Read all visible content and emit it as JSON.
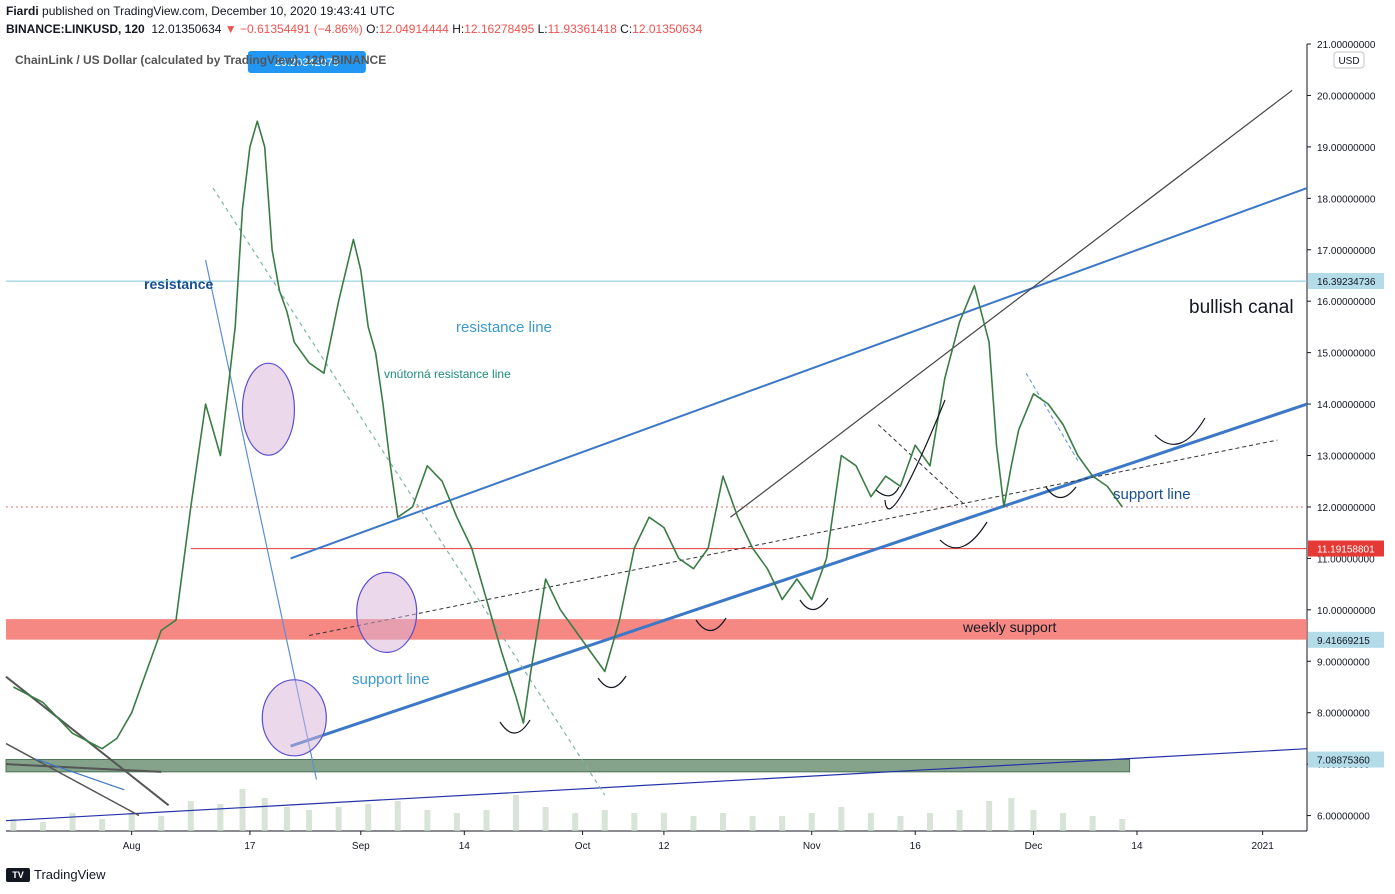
{
  "header": {
    "author": "Fiardi",
    "published": "published on TradingView.com, December 10, 2020 19:43:41 UTC",
    "symbol": "BINANCE:LINKUSD, 120",
    "last": "12.01350634",
    "change": "▼ −0.61354491 (−4.86%)",
    "o_label": "O:",
    "o": "12.04914444",
    "h_label": "H:",
    "h": "12.16278495",
    "l_label": "L:",
    "l": "11.93361418",
    "c_label": "C:",
    "c": "12.01350634"
  },
  "footer": {
    "brand": "TradingView",
    "logo_text": "TV"
  },
  "chart_data": {
    "type": "line",
    "title": "ChainLink / US Dollar (calculated by TradingView), 120, BINANCE",
    "price_tag": "20.20342079",
    "currency": "USD",
    "ylim": [
      5.7,
      21.0
    ],
    "y_ticks": [
      "21.00000000",
      "20.00000000",
      "19.00000000",
      "18.00000000",
      "17.00000000",
      "16.00000000",
      "15.00000000",
      "14.00000000",
      "13.00000000",
      "12.00000000",
      "11.00000000",
      "10.00000000",
      "9.00000000",
      "8.00000000",
      "7.00000000",
      "6.00000000"
    ],
    "y_tick_values": [
      21,
      20,
      19,
      18,
      17,
      16,
      15,
      14,
      13,
      12,
      11,
      10,
      9,
      8,
      7,
      6
    ],
    "x_ticks": [
      "Aug",
      "17",
      "Sep",
      "14",
      "Oct",
      "12",
      "Nov",
      "16",
      "Dec",
      "14",
      "2021"
    ],
    "x_tick_days": [
      0,
      16,
      31,
      45,
      61,
      72,
      92,
      106,
      122,
      136,
      153
    ],
    "price_labels": [
      {
        "text": "16.39234736",
        "value": 16.39234736,
        "color": "#b3dce8",
        "text_color": "#131722"
      },
      {
        "text": "11.19158801",
        "value": 11.19158801,
        "color": "#e53935",
        "text_color": "#ffffff"
      },
      {
        "text": "9.41669215",
        "value": 9.41669215,
        "color": "#b3dce8",
        "text_color": "#131722"
      },
      {
        "text": "7.08875360",
        "value": 7.0887536,
        "color": "#b3dce8",
        "text_color": "#131722"
      }
    ],
    "annotations": [
      {
        "text": "resistance",
        "color": "#1a4f8f",
        "bold": true
      },
      {
        "text": "resistance line",
        "color": "#3b9ad0"
      },
      {
        "text": "vnútorná resistance line",
        "color": "#1e8c7e"
      },
      {
        "text": "support line",
        "color": "#3b9ad0"
      },
      {
        "text": "support line",
        "color": "#1a4f8f"
      },
      {
        "text": "weekly support",
        "color": "#131722"
      },
      {
        "text": "bullish canal",
        "color": "#131722"
      }
    ],
    "series": [
      {
        "x": [
          -16,
          -12,
          -8,
          -4,
          -2,
          0,
          2,
          4,
          6,
          8,
          10,
          12,
          14,
          15,
          16,
          17,
          18,
          19,
          20,
          21,
          22,
          24,
          26,
          28,
          30,
          31,
          32,
          33,
          34,
          35,
          36,
          38,
          40,
          42,
          44,
          46,
          48,
          50,
          52,
          53,
          54,
          56,
          58,
          60,
          62,
          64,
          66,
          68,
          70,
          72,
          74,
          76,
          78,
          80,
          82,
          84,
          86,
          88,
          90,
          92,
          94,
          96,
          98,
          100,
          102,
          104,
          106,
          108,
          110,
          112,
          114,
          116,
          117,
          118,
          119,
          120,
          122,
          124,
          126,
          128,
          130,
          132,
          134
        ],
        "values": [
          8.5,
          8.2,
          7.6,
          7.3,
          7.5,
          8.0,
          8.8,
          9.6,
          9.8,
          12.0,
          14.0,
          13.0,
          15.5,
          17.8,
          19.0,
          19.5,
          19.0,
          17.0,
          16.2,
          15.8,
          15.2,
          14.8,
          14.6,
          16.0,
          17.2,
          16.6,
          15.5,
          15.0,
          14.0,
          12.8,
          11.8,
          12.0,
          12.8,
          12.5,
          11.8,
          11.2,
          10.2,
          9.2,
          8.3,
          7.8,
          8.8,
          10.6,
          10.0,
          9.6,
          9.2,
          8.8,
          9.8,
          11.2,
          11.8,
          11.6,
          11.0,
          10.8,
          11.2,
          12.6,
          11.8,
          11.2,
          10.8,
          10.2,
          10.6,
          10.2,
          11.0,
          13.0,
          12.8,
          12.2,
          12.6,
          12.4,
          13.2,
          12.8,
          14.5,
          15.6,
          16.3,
          15.2,
          13.2,
          12.0,
          12.8,
          13.5,
          14.2,
          14.0,
          13.6,
          13.0,
          12.6,
          12.4,
          12.0
        ]
      }
    ],
    "volume": {
      "x": [
        -16,
        -12,
        -8,
        -4,
        0,
        4,
        8,
        12,
        15,
        18,
        21,
        24,
        28,
        32,
        36,
        40,
        44,
        48,
        52,
        56,
        60,
        64,
        68,
        72,
        76,
        80,
        84,
        88,
        92,
        96,
        100,
        104,
        108,
        112,
        116,
        119,
        122,
        126,
        130,
        134
      ],
      "values": [
        0.2,
        0.15,
        0.3,
        0.2,
        0.3,
        0.25,
        0.5,
        0.45,
        0.7,
        0.55,
        0.4,
        0.35,
        0.4,
        0.45,
        0.5,
        0.35,
        0.3,
        0.35,
        0.6,
        0.4,
        0.3,
        0.35,
        0.3,
        0.3,
        0.25,
        0.3,
        0.25,
        0.25,
        0.3,
        0.4,
        0.3,
        0.25,
        0.3,
        0.35,
        0.5,
        0.55,
        0.35,
        0.3,
        0.25,
        0.2
      ]
    }
  }
}
